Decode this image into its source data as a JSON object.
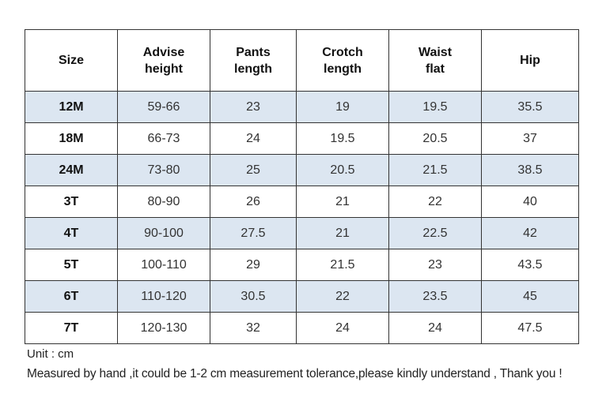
{
  "table": {
    "headers": [
      "Size",
      "Advise height",
      "Pants length",
      "Crotch length",
      "Waist flat",
      "Hip"
    ],
    "header_lines": [
      [
        "Size"
      ],
      [
        "Advise",
        "height"
      ],
      [
        "Pants",
        "length"
      ],
      [
        "Crotch",
        "length"
      ],
      [
        "Waist",
        "flat"
      ],
      [
        "Hip"
      ]
    ],
    "rows": [
      [
        "12M",
        "59-66",
        "23",
        "19",
        "19.5",
        "35.5"
      ],
      [
        "18M",
        "66-73",
        "24",
        "19.5",
        "20.5",
        "37"
      ],
      [
        "24M",
        "73-80",
        "25",
        "20.5",
        "21.5",
        "38.5"
      ],
      [
        "3T",
        "80-90",
        "26",
        "21",
        "22",
        "40"
      ],
      [
        "4T",
        "90-100",
        "27.5",
        "21",
        "22.5",
        "42"
      ],
      [
        "5T",
        "100-110",
        "29",
        "21.5",
        "23",
        "43.5"
      ],
      [
        "6T",
        "110-120",
        "30.5",
        "22",
        "23.5",
        "45"
      ],
      [
        "7T",
        "120-130",
        "32",
        "24",
        "24",
        "47.5"
      ]
    ],
    "shaded_row_color": "#dce6f1"
  },
  "notes": {
    "unit": "Unit : cm",
    "disclaimer": "Measured by hand ,it could be 1-2 cm measurement tolerance,please kindly understand , Thank you !"
  }
}
